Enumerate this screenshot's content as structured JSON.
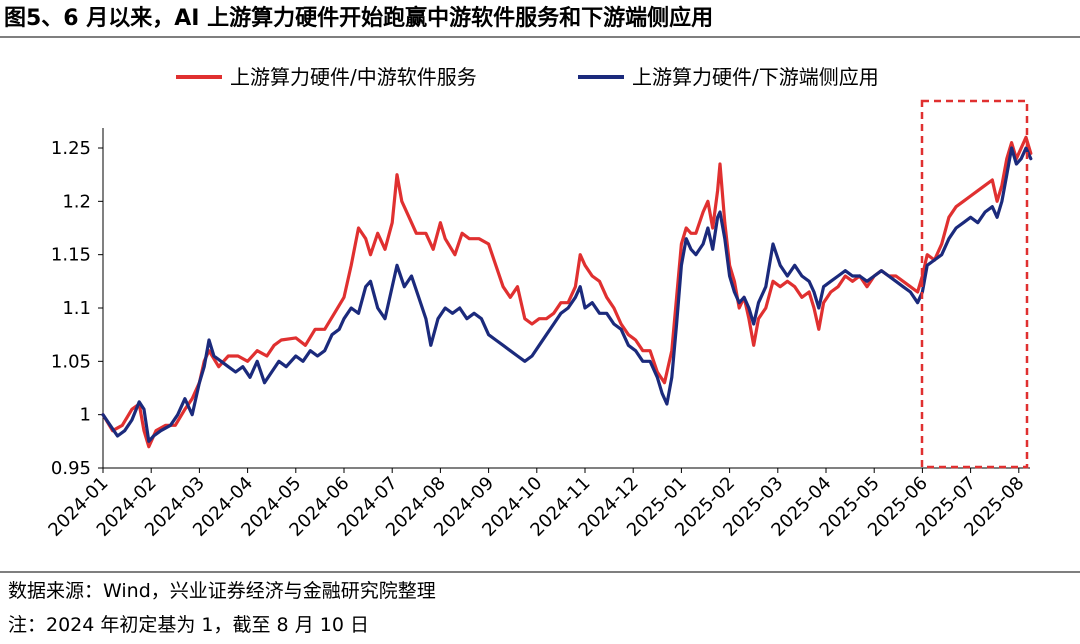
{
  "header": {
    "title": "图5、6 月以来，AI 上游算力硬件开始跑赢中游软件服务和下游端侧应用"
  },
  "footer": {
    "source": "数据来源：Wind，兴业证券经济与金融研究院整理",
    "note": "注：2024 年初定基为 1，截至 8 月 10 日"
  },
  "colors": {
    "red": "#e03030",
    "navy": "#1b2a7c",
    "highlight": "#e03030"
  },
  "chart_data": {
    "type": "line",
    "title": "",
    "xlabel": "",
    "ylabel": "",
    "ylim": [
      0.95,
      1.25
    ],
    "yticks": [
      "0.95",
      "1",
      "1.05",
      "1.1",
      "1.15",
      "1.2",
      "1.25"
    ],
    "ytick_values": [
      0.95,
      1.0,
      1.05,
      1.1,
      1.15,
      1.2,
      1.25
    ],
    "categories": [
      "2024-01",
      "2024-02",
      "2024-03",
      "2024-04",
      "2024-05",
      "2024-06",
      "2024-07",
      "2024-08",
      "2024-09",
      "2024-10",
      "2024-11",
      "2024-12",
      "2025-01",
      "2025-02",
      "2025-03",
      "2025-04",
      "2025-05",
      "2025-06",
      "2025-07",
      "2025-08"
    ],
    "legend_position": "top",
    "highlight_range": {
      "from": "2025-06",
      "to": "2025-08-10",
      "style": "dashed box"
    },
    "series": [
      {
        "name": "上游算力硬件/中游软件服务",
        "color": "#e03030",
        "points": [
          [
            0,
            1.0
          ],
          [
            0.2,
            0.985
          ],
          [
            0.4,
            0.99
          ],
          [
            0.6,
            1.005
          ],
          [
            0.75,
            1.01
          ],
          [
            0.85,
            0.985
          ],
          [
            0.95,
            0.97
          ],
          [
            1.1,
            0.985
          ],
          [
            1.3,
            0.99
          ],
          [
            1.5,
            0.99
          ],
          [
            1.7,
            1.005
          ],
          [
            1.85,
            1.015
          ],
          [
            2.0,
            1.03
          ],
          [
            2.1,
            1.05
          ],
          [
            2.2,
            1.06
          ],
          [
            2.4,
            1.045
          ],
          [
            2.6,
            1.055
          ],
          [
            2.8,
            1.055
          ],
          [
            3.0,
            1.05
          ],
          [
            3.2,
            1.06
          ],
          [
            3.4,
            1.055
          ],
          [
            3.55,
            1.065
          ],
          [
            3.7,
            1.07
          ],
          [
            4.0,
            1.072
          ],
          [
            4.2,
            1.065
          ],
          [
            4.4,
            1.08
          ],
          [
            4.6,
            1.08
          ],
          [
            4.8,
            1.095
          ],
          [
            5.0,
            1.11
          ],
          [
            5.15,
            1.14
          ],
          [
            5.3,
            1.175
          ],
          [
            5.45,
            1.165
          ],
          [
            5.55,
            1.15
          ],
          [
            5.7,
            1.17
          ],
          [
            5.85,
            1.155
          ],
          [
            6.0,
            1.18
          ],
          [
            6.1,
            1.225
          ],
          [
            6.2,
            1.2
          ],
          [
            6.35,
            1.185
          ],
          [
            6.5,
            1.17
          ],
          [
            6.7,
            1.17
          ],
          [
            6.85,
            1.155
          ],
          [
            7.0,
            1.18
          ],
          [
            7.1,
            1.165
          ],
          [
            7.3,
            1.15
          ],
          [
            7.45,
            1.17
          ],
          [
            7.6,
            1.165
          ],
          [
            7.8,
            1.165
          ],
          [
            8.0,
            1.16
          ],
          [
            8.15,
            1.14
          ],
          [
            8.3,
            1.12
          ],
          [
            8.45,
            1.11
          ],
          [
            8.6,
            1.12
          ],
          [
            8.75,
            1.09
          ],
          [
            8.9,
            1.085
          ],
          [
            9.05,
            1.09
          ],
          [
            9.2,
            1.09
          ],
          [
            9.35,
            1.095
          ],
          [
            9.5,
            1.105
          ],
          [
            9.65,
            1.105
          ],
          [
            9.8,
            1.12
          ],
          [
            9.9,
            1.15
          ],
          [
            10.0,
            1.14
          ],
          [
            10.15,
            1.13
          ],
          [
            10.3,
            1.125
          ],
          [
            10.45,
            1.11
          ],
          [
            10.6,
            1.1
          ],
          [
            10.75,
            1.085
          ],
          [
            10.9,
            1.075
          ],
          [
            11.05,
            1.07
          ],
          [
            11.2,
            1.06
          ],
          [
            11.35,
            1.06
          ],
          [
            11.5,
            1.04
          ],
          [
            11.65,
            1.03
          ],
          [
            11.8,
            1.06
          ],
          [
            11.9,
            1.11
          ],
          [
            12.0,
            1.16
          ],
          [
            12.1,
            1.175
          ],
          [
            12.2,
            1.17
          ],
          [
            12.3,
            1.17
          ],
          [
            12.45,
            1.19
          ],
          [
            12.55,
            1.2
          ],
          [
            12.65,
            1.175
          ],
          [
            12.75,
            1.21
          ],
          [
            12.8,
            1.235
          ],
          [
            12.9,
            1.18
          ],
          [
            13.0,
            1.14
          ],
          [
            13.1,
            1.125
          ],
          [
            13.2,
            1.1
          ],
          [
            13.3,
            1.11
          ],
          [
            13.4,
            1.09
          ],
          [
            13.5,
            1.065
          ],
          [
            13.6,
            1.09
          ],
          [
            13.75,
            1.1
          ],
          [
            13.9,
            1.125
          ],
          [
            14.05,
            1.12
          ],
          [
            14.2,
            1.125
          ],
          [
            14.35,
            1.12
          ],
          [
            14.5,
            1.11
          ],
          [
            14.65,
            1.115
          ],
          [
            14.75,
            1.1
          ],
          [
            14.85,
            1.08
          ],
          [
            14.95,
            1.105
          ],
          [
            15.1,
            1.115
          ],
          [
            15.25,
            1.12
          ],
          [
            15.4,
            1.13
          ],
          [
            15.55,
            1.125
          ],
          [
            15.7,
            1.13
          ],
          [
            15.85,
            1.12
          ],
          [
            16.0,
            1.13
          ],
          [
            16.15,
            1.135
          ],
          [
            16.3,
            1.13
          ],
          [
            16.45,
            1.13
          ],
          [
            16.6,
            1.125
          ],
          [
            16.75,
            1.12
          ],
          [
            16.9,
            1.115
          ],
          [
            17.0,
            1.13
          ],
          [
            17.1,
            1.15
          ],
          [
            17.25,
            1.145
          ],
          [
            17.4,
            1.16
          ],
          [
            17.55,
            1.185
          ],
          [
            17.7,
            1.195
          ],
          [
            17.85,
            1.2
          ],
          [
            18.0,
            1.205
          ],
          [
            18.15,
            1.21
          ],
          [
            18.3,
            1.215
          ],
          [
            18.45,
            1.22
          ],
          [
            18.55,
            1.2
          ],
          [
            18.65,
            1.215
          ],
          [
            18.75,
            1.24
          ],
          [
            18.85,
            1.255
          ],
          [
            18.95,
            1.24
          ],
          [
            19.05,
            1.25
          ],
          [
            19.15,
            1.26
          ],
          [
            19.25,
            1.245
          ]
        ]
      },
      {
        "name": "上游算力硬件/下游端侧应用",
        "color": "#1b2a7c",
        "points": [
          [
            0,
            1.0
          ],
          [
            0.15,
            0.99
          ],
          [
            0.3,
            0.98
          ],
          [
            0.45,
            0.985
          ],
          [
            0.6,
            0.995
          ],
          [
            0.75,
            1.012
          ],
          [
            0.85,
            1.005
          ],
          [
            0.95,
            0.975
          ],
          [
            1.05,
            0.98
          ],
          [
            1.2,
            0.985
          ],
          [
            1.4,
            0.99
          ],
          [
            1.55,
            1.0
          ],
          [
            1.7,
            1.015
          ],
          [
            1.85,
            1.0
          ],
          [
            2.0,
            1.03
          ],
          [
            2.1,
            1.045
          ],
          [
            2.2,
            1.07
          ],
          [
            2.3,
            1.055
          ],
          [
            2.45,
            1.05
          ],
          [
            2.6,
            1.045
          ],
          [
            2.75,
            1.04
          ],
          [
            2.9,
            1.045
          ],
          [
            3.05,
            1.035
          ],
          [
            3.2,
            1.05
          ],
          [
            3.35,
            1.03
          ],
          [
            3.5,
            1.04
          ],
          [
            3.65,
            1.05
          ],
          [
            3.8,
            1.045
          ],
          [
            4.0,
            1.055
          ],
          [
            4.15,
            1.05
          ],
          [
            4.3,
            1.06
          ],
          [
            4.45,
            1.055
          ],
          [
            4.6,
            1.06
          ],
          [
            4.75,
            1.075
          ],
          [
            4.9,
            1.08
          ],
          [
            5.0,
            1.09
          ],
          [
            5.15,
            1.1
          ],
          [
            5.3,
            1.095
          ],
          [
            5.45,
            1.12
          ],
          [
            5.55,
            1.125
          ],
          [
            5.7,
            1.1
          ],
          [
            5.85,
            1.09
          ],
          [
            6.0,
            1.12
          ],
          [
            6.1,
            1.14
          ],
          [
            6.25,
            1.12
          ],
          [
            6.4,
            1.13
          ],
          [
            6.55,
            1.11
          ],
          [
            6.7,
            1.09
          ],
          [
            6.8,
            1.065
          ],
          [
            6.95,
            1.09
          ],
          [
            7.1,
            1.1
          ],
          [
            7.25,
            1.095
          ],
          [
            7.4,
            1.1
          ],
          [
            7.55,
            1.09
          ],
          [
            7.7,
            1.095
          ],
          [
            7.85,
            1.09
          ],
          [
            8.0,
            1.075
          ],
          [
            8.15,
            1.07
          ],
          [
            8.3,
            1.065
          ],
          [
            8.45,
            1.06
          ],
          [
            8.6,
            1.055
          ],
          [
            8.75,
            1.05
          ],
          [
            8.9,
            1.055
          ],
          [
            9.05,
            1.065
          ],
          [
            9.2,
            1.075
          ],
          [
            9.35,
            1.085
          ],
          [
            9.5,
            1.095
          ],
          [
            9.65,
            1.1
          ],
          [
            9.8,
            1.11
          ],
          [
            9.9,
            1.12
          ],
          [
            10.0,
            1.1
          ],
          [
            10.15,
            1.105
          ],
          [
            10.3,
            1.095
          ],
          [
            10.45,
            1.095
          ],
          [
            10.6,
            1.085
          ],
          [
            10.75,
            1.08
          ],
          [
            10.9,
            1.065
          ],
          [
            11.05,
            1.06
          ],
          [
            11.2,
            1.05
          ],
          [
            11.35,
            1.05
          ],
          [
            11.5,
            1.035
          ],
          [
            11.6,
            1.02
          ],
          [
            11.7,
            1.01
          ],
          [
            11.8,
            1.035
          ],
          [
            11.9,
            1.085
          ],
          [
            12.0,
            1.14
          ],
          [
            12.1,
            1.165
          ],
          [
            12.2,
            1.155
          ],
          [
            12.3,
            1.15
          ],
          [
            12.45,
            1.16
          ],
          [
            12.55,
            1.175
          ],
          [
            12.65,
            1.155
          ],
          [
            12.75,
            1.185
          ],
          [
            12.8,
            1.19
          ],
          [
            12.9,
            1.165
          ],
          [
            13.0,
            1.13
          ],
          [
            13.1,
            1.115
          ],
          [
            13.2,
            1.105
          ],
          [
            13.3,
            1.11
          ],
          [
            13.4,
            1.1
          ],
          [
            13.5,
            1.085
          ],
          [
            13.6,
            1.105
          ],
          [
            13.75,
            1.12
          ],
          [
            13.9,
            1.16
          ],
          [
            14.05,
            1.14
          ],
          [
            14.2,
            1.13
          ],
          [
            14.35,
            1.14
          ],
          [
            14.5,
            1.13
          ],
          [
            14.65,
            1.125
          ],
          [
            14.75,
            1.115
          ],
          [
            14.85,
            1.1
          ],
          [
            14.95,
            1.12
          ],
          [
            15.1,
            1.125
          ],
          [
            15.25,
            1.13
          ],
          [
            15.4,
            1.135
          ],
          [
            15.55,
            1.13
          ],
          [
            15.7,
            1.13
          ],
          [
            15.85,
            1.125
          ],
          [
            16.0,
            1.13
          ],
          [
            16.15,
            1.135
          ],
          [
            16.3,
            1.13
          ],
          [
            16.45,
            1.125
          ],
          [
            16.6,
            1.12
          ],
          [
            16.75,
            1.115
          ],
          [
            16.9,
            1.105
          ],
          [
            17.0,
            1.115
          ],
          [
            17.1,
            1.14
          ],
          [
            17.25,
            1.145
          ],
          [
            17.4,
            1.15
          ],
          [
            17.55,
            1.165
          ],
          [
            17.7,
            1.175
          ],
          [
            17.85,
            1.18
          ],
          [
            18.0,
            1.185
          ],
          [
            18.15,
            1.18
          ],
          [
            18.3,
            1.19
          ],
          [
            18.45,
            1.195
          ],
          [
            18.55,
            1.185
          ],
          [
            18.65,
            1.2
          ],
          [
            18.75,
            1.225
          ],
          [
            18.85,
            1.25
          ],
          [
            18.95,
            1.235
          ],
          [
            19.05,
            1.24
          ],
          [
            19.15,
            1.25
          ],
          [
            19.25,
            1.24
          ]
        ]
      }
    ]
  }
}
